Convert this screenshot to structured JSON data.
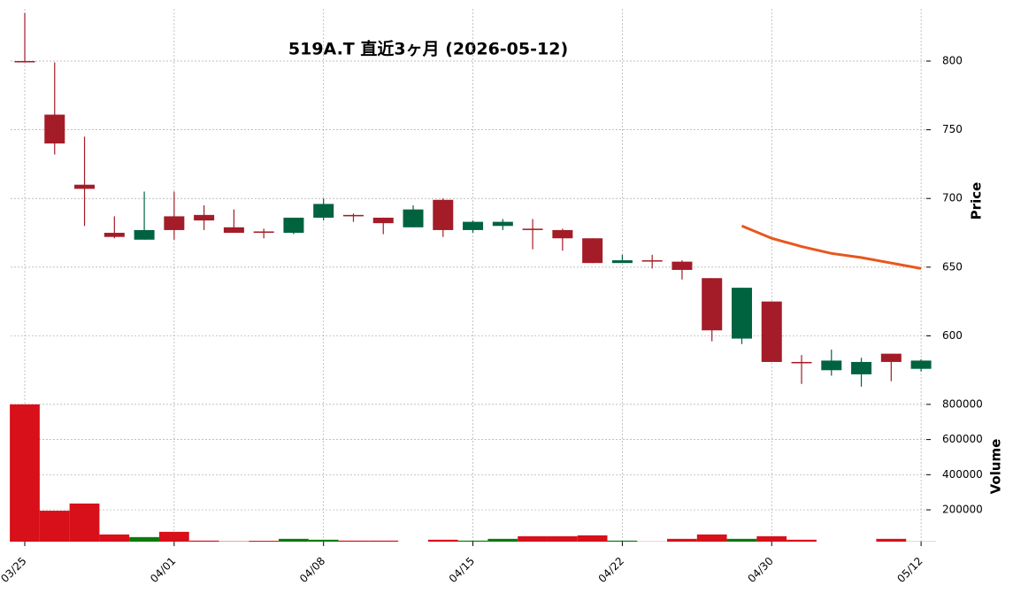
{
  "chart_data": {
    "type": "candlestick",
    "title": "519A.T 直近3ヶ月 (2026-05-12)",
    "categories": [
      "03/25",
      null,
      null,
      null,
      null,
      "04/01",
      null,
      null,
      null,
      null,
      "04/08",
      null,
      null,
      null,
      null,
      "04/15",
      null,
      null,
      null,
      null,
      "04/22",
      null,
      null,
      null,
      null,
      "04/30",
      null,
      null,
      null,
      null,
      "05/12"
    ],
    "open": [
      800,
      761,
      710,
      675,
      670,
      687,
      688,
      679,
      676,
      675,
      686,
      688,
      686,
      679,
      699,
      677,
      680,
      678,
      677,
      671,
      653,
      655,
      654,
      642,
      598,
      625,
      581,
      575,
      572,
      587,
      576
    ],
    "high": [
      835,
      799,
      745,
      687,
      705,
      705,
      695,
      692,
      678,
      686,
      700,
      689,
      686,
      695,
      700,
      684,
      685,
      685,
      678,
      671,
      659,
      659,
      655,
      642,
      635,
      625,
      586,
      590,
      584,
      587,
      583
    ],
    "low": [
      800,
      732,
      680,
      671,
      670,
      670,
      677,
      675,
      671,
      674,
      684,
      683,
      674,
      679,
      672,
      675,
      677,
      663,
      662,
      653,
      653,
      649,
      641,
      596,
      594,
      581,
      565,
      571,
      563,
      567,
      574
    ],
    "close": [
      800,
      740,
      707,
      672,
      677,
      677,
      684,
      675,
      675,
      686,
      696,
      687,
      682,
      692,
      677,
      683,
      683,
      677,
      671,
      653,
      655,
      655,
      648,
      604,
      635,
      581,
      581,
      582,
      581,
      581,
      582
    ],
    "up_color": "#006340",
    "down_color": "#a31c27",
    "ylim": [
      561,
      838
    ],
    "yticks": [
      600,
      650,
      700,
      750,
      800
    ],
    "ylabel": "Price",
    "grid": true,
    "line": {
      "color": "#e8571c",
      "values": [
        null,
        null,
        null,
        null,
        null,
        null,
        null,
        null,
        null,
        null,
        null,
        null,
        null,
        null,
        null,
        null,
        null,
        null,
        null,
        null,
        null,
        null,
        null,
        null,
        680,
        671,
        665,
        660,
        657,
        653,
        649
      ]
    },
    "volume": {
      "values": [
        800000,
        195000,
        236000,
        60000,
        45000,
        75000,
        25000,
        21000,
        24000,
        35000,
        30000,
        25000,
        25000,
        18000,
        30000,
        25000,
        35000,
        50000,
        50000,
        55000,
        25000,
        20000,
        35000,
        60000,
        35000,
        50000,
        30000,
        18000,
        18000,
        35000,
        20000
      ],
      "up_color": "#0a7a0a",
      "down_color": "#d7101a",
      "ylim": [
        19000,
        885000
      ],
      "yticks": [
        200000,
        400000,
        600000,
        800000
      ],
      "ylabel": "Volume"
    }
  }
}
